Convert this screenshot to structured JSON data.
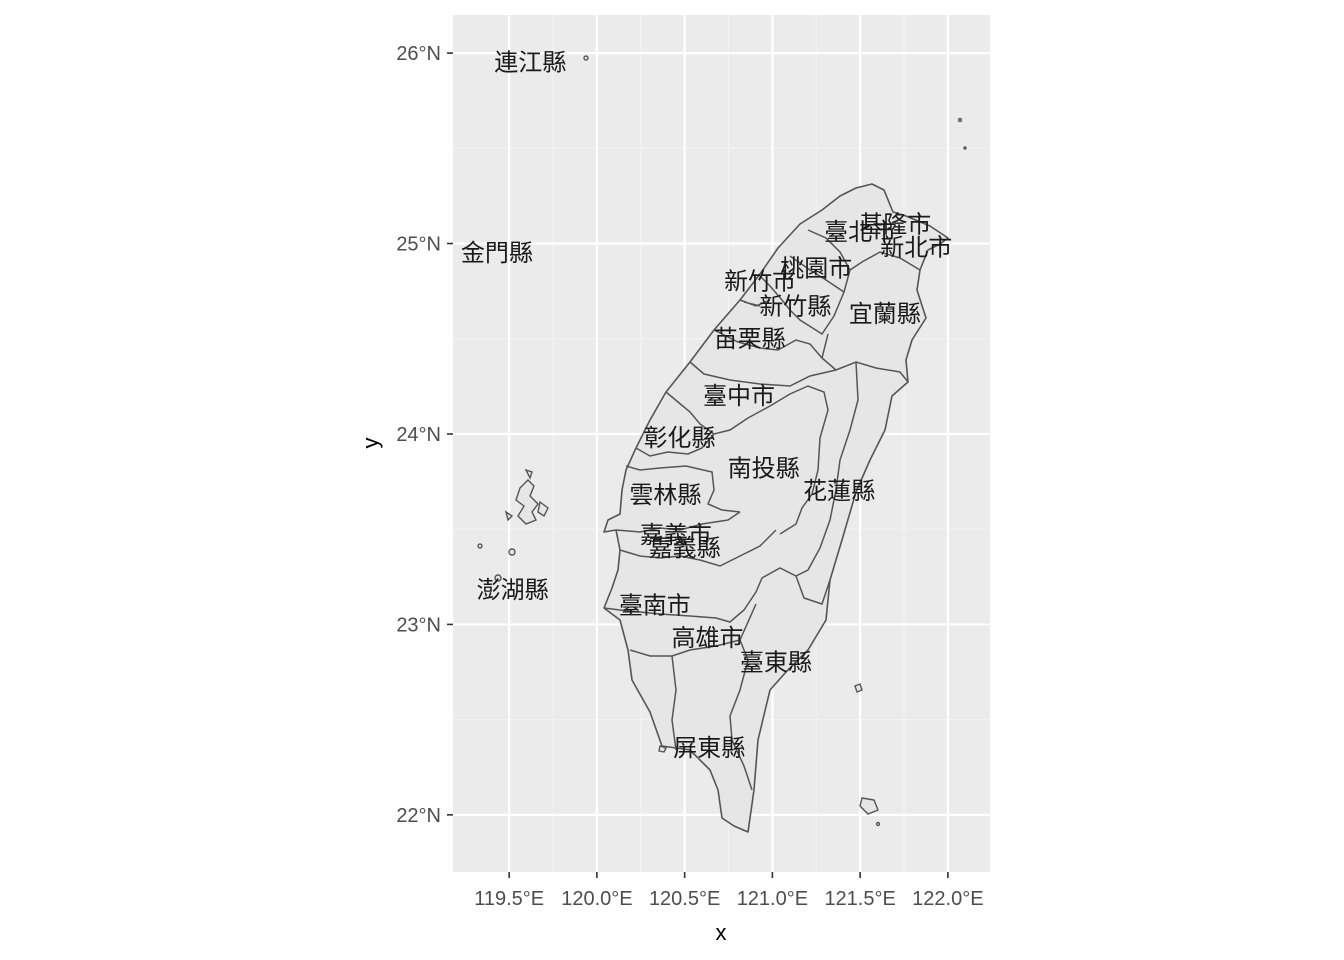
{
  "chart_data": {
    "type": "map",
    "xlabel": "x",
    "ylabel": "y",
    "xlim": [
      119.18,
      122.24
    ],
    "ylim": [
      21.7,
      26.2
    ],
    "grid": true,
    "x_ticks": [
      {
        "value": 119.5,
        "label": "119.5°E"
      },
      {
        "value": 120.0,
        "label": "120.0°E"
      },
      {
        "value": 120.5,
        "label": "120.5°E"
      },
      {
        "value": 121.0,
        "label": "121.0°E"
      },
      {
        "value": 121.5,
        "label": "121.5°E"
      },
      {
        "value": 122.0,
        "label": "122.0°E"
      }
    ],
    "y_ticks": [
      {
        "value": 22,
        "label": "22°N"
      },
      {
        "value": 23,
        "label": "23°N"
      },
      {
        "value": 24,
        "label": "24°N"
      },
      {
        "value": 25,
        "label": "25°N"
      },
      {
        "value": 26,
        "label": "26°N"
      }
    ],
    "labels": [
      {
        "name": "連江縣",
        "lon": 119.62,
        "lat": 25.95
      },
      {
        "name": "金門縣",
        "lon": 119.43,
        "lat": 24.95
      },
      {
        "name": "澎湖縣",
        "lon": 119.52,
        "lat": 23.18
      },
      {
        "name": "臺北市",
        "lon": 121.5,
        "lat": 25.06
      },
      {
        "name": "基隆市",
        "lon": 121.7,
        "lat": 25.1
      },
      {
        "name": "新北市",
        "lon": 121.82,
        "lat": 24.98
      },
      {
        "name": "桃園市",
        "lon": 121.25,
        "lat": 24.87
      },
      {
        "name": "新竹市",
        "lon": 120.93,
        "lat": 24.8
      },
      {
        "name": "新竹縣",
        "lon": 121.13,
        "lat": 24.67
      },
      {
        "name": "宜蘭縣",
        "lon": 121.64,
        "lat": 24.63
      },
      {
        "name": "苗栗縣",
        "lon": 120.87,
        "lat": 24.5
      },
      {
        "name": "臺中市",
        "lon": 120.81,
        "lat": 24.2
      },
      {
        "name": "彰化縣",
        "lon": 120.47,
        "lat": 23.98
      },
      {
        "name": "南投縣",
        "lon": 120.95,
        "lat": 23.82
      },
      {
        "name": "花蓮縣",
        "lon": 121.38,
        "lat": 23.7
      },
      {
        "name": "雲林縣",
        "lon": 120.39,
        "lat": 23.68
      },
      {
        "name": "嘉義市",
        "lon": 120.45,
        "lat": 23.47
      },
      {
        "name": "嘉義縣",
        "lon": 120.5,
        "lat": 23.4
      },
      {
        "name": "臺南市",
        "lon": 120.33,
        "lat": 23.1
      },
      {
        "name": "高雄市",
        "lon": 120.63,
        "lat": 22.93
      },
      {
        "name": "臺東縣",
        "lon": 121.02,
        "lat": 22.8
      },
      {
        "name": "屏東縣",
        "lon": 120.64,
        "lat": 22.35
      }
    ]
  }
}
